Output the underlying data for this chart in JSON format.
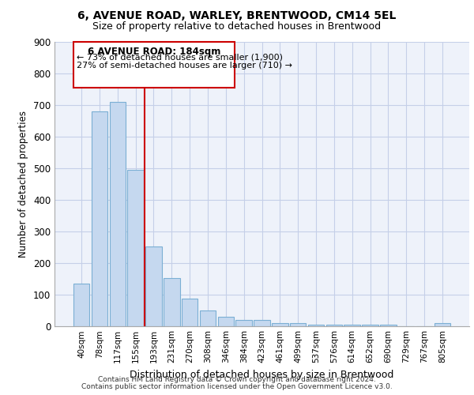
{
  "title1": "6, AVENUE ROAD, WARLEY, BRENTWOOD, CM14 5EL",
  "title2": "Size of property relative to detached houses in Brentwood",
  "xlabel": "Distribution of detached houses by size in Brentwood",
  "ylabel": "Number of detached properties",
  "categories": [
    "40sqm",
    "78sqm",
    "117sqm",
    "155sqm",
    "193sqm",
    "231sqm",
    "270sqm",
    "308sqm",
    "346sqm",
    "384sqm",
    "423sqm",
    "461sqm",
    "499sqm",
    "537sqm",
    "576sqm",
    "614sqm",
    "652sqm",
    "690sqm",
    "729sqm",
    "767sqm",
    "805sqm"
  ],
  "values": [
    135,
    678,
    710,
    493,
    252,
    152,
    87,
    50,
    28,
    20,
    20,
    10,
    10,
    5,
    5,
    5,
    5,
    5,
    0,
    0,
    8
  ],
  "bar_color": "#c5d8ef",
  "bar_edge_color": "#7bafd4",
  "marker_label": "6 AVENUE ROAD: 184sqm",
  "marker_smaller": "← 73% of detached houses are smaller (1,900)",
  "marker_larger": "27% of semi-detached houses are larger (710) →",
  "marker_color": "#cc0000",
  "annotation_box_color": "#cc0000",
  "ylim": [
    0,
    900
  ],
  "yticks": [
    0,
    100,
    200,
    300,
    400,
    500,
    600,
    700,
    800,
    900
  ],
  "footer1": "Contains HM Land Registry data © Crown copyright and database right 2024.",
  "footer2": "Contains public sector information licensed under the Open Government Licence v3.0.",
  "bg_color": "#eef2fa",
  "grid_color": "#c5cfe8"
}
